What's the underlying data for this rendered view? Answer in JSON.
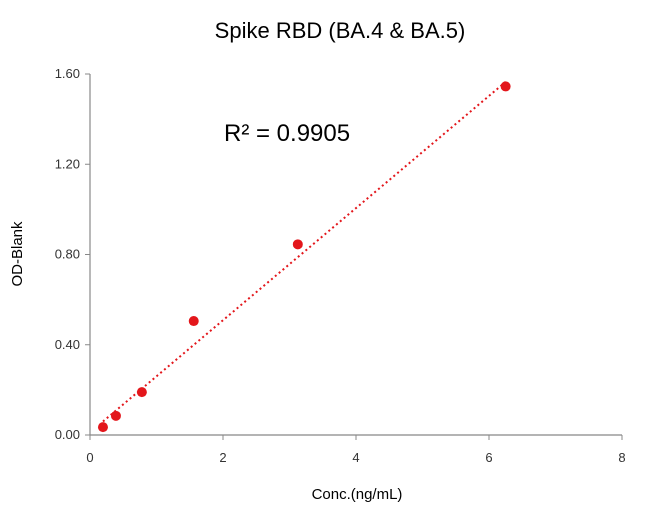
{
  "chart_data": {
    "type": "scatter",
    "title": "Spike RBD (BA.4 & BA.5)",
    "xlabel": "Conc.(ng/mL)",
    "ylabel": "OD-Blank",
    "xlim": [
      0,
      8
    ],
    "ylim": [
      0,
      1.6
    ],
    "x_ticks": [
      0,
      2,
      4,
      6,
      8
    ],
    "y_ticks": [
      0.0,
      0.4,
      0.8,
      1.2,
      1.6
    ],
    "x_tick_labels": [
      "0",
      "2",
      "4",
      "6",
      "8"
    ],
    "y_tick_labels": [
      "0.00",
      "0.40",
      "0.80",
      "1.20",
      "1.60"
    ],
    "grid": false,
    "legend": "none",
    "series": [
      {
        "color": "#e3161b",
        "points": [
          {
            "x": 0.195,
            "y": 0.035
          },
          {
            "x": 0.39,
            "y": 0.085
          },
          {
            "x": 0.78,
            "y": 0.19
          },
          {
            "x": 1.56,
            "y": 0.505
          },
          {
            "x": 3.125,
            "y": 0.845
          },
          {
            "x": 6.25,
            "y": 1.545
          }
        ]
      }
    ],
    "trendline": {
      "color": "#e3161b",
      "style": "dotted",
      "x_start": 0.195,
      "x_end": 6.25,
      "y_start": 0.06,
      "y_end": 1.565,
      "annotation": "R² = 0.9905"
    }
  }
}
